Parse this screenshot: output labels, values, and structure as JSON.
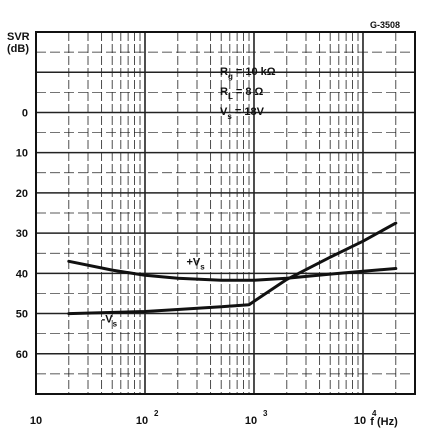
{
  "chart_data": {
    "type": "line",
    "title": "",
    "figure_code": "G-3508",
    "ylabel_line1": "SVR",
    "ylabel_line2": "(dB)",
    "xlabel": "f (Hz)",
    "x_scale": "log",
    "xlim": [
      10,
      30000
    ],
    "y_inverted": true,
    "ylim": [
      -20,
      70
    ],
    "grid": true,
    "x_ticks": [
      {
        "value": 10,
        "base": "10",
        "exp": ""
      },
      {
        "value": 100,
        "base": "10",
        "exp": "2"
      },
      {
        "value": 1000,
        "base": "10",
        "exp": "3"
      },
      {
        "value": 10000,
        "base": "10",
        "exp": "4"
      }
    ],
    "y_ticks": [
      0,
      10,
      20,
      30,
      40,
      50,
      60
    ],
    "y_tick_labels": [
      "0",
      "10",
      "20",
      "30",
      "40",
      "50",
      "60"
    ],
    "conditions": [
      {
        "symbol": "R",
        "sub": "g",
        "rest": " = 10 kΩ"
      },
      {
        "symbol": "R",
        "sub": "L",
        "rest": " = 8 Ω"
      },
      {
        "symbol": "V",
        "sub": "s",
        "rest": " = 18V"
      }
    ],
    "series": [
      {
        "name": "+Vs",
        "label_prefix": "+V",
        "label_sub": "s",
        "x": [
          20,
          50,
          100,
          200,
          500,
          1000,
          2000,
          5000,
          10000,
          20000
        ],
        "y": [
          37,
          39.2,
          40.5,
          41.2,
          41.7,
          41.7,
          41.2,
          40.2,
          39.5,
          38.8
        ]
      },
      {
        "name": "-Vs",
        "label_prefix": "-V",
        "label_sub": "s",
        "x": [
          20,
          100,
          200,
          500,
          900,
          2000,
          5000,
          10000,
          20000
        ],
        "y": [
          50,
          49.5,
          49,
          48.3,
          47.8,
          41.5,
          36,
          32,
          27.5
        ]
      }
    ]
  }
}
